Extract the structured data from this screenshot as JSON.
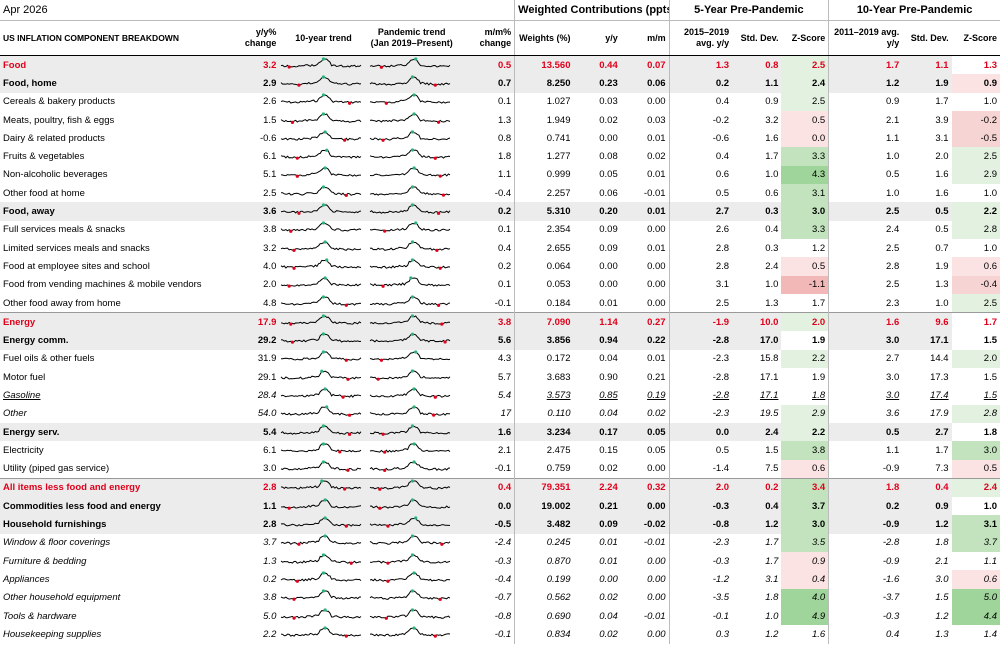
{
  "date": "Apr 2026",
  "groups": {
    "weighted": "Weighted Contributions (ppts)*",
    "five": "5-Year Pre-Pandemic",
    "ten": "10-Year Pre-Pandemic"
  },
  "headers": {
    "component": "US INFLATION COMPONENT BREAKDOWN",
    "yy": "y/y% change",
    "trend10": "10-year trend",
    "pandemic": "Pandemic trend (Jan 2019–Present)",
    "mm": "m/m% change",
    "weights": "Weights (%)",
    "wyy": "y/y",
    "wmm": "m/m",
    "avg5": "2015–2019 avg. y/y",
    "sd5": "Std. Dev.",
    "z5": "Z-Score",
    "avg10": "2011–2019 avg. y/y",
    "sd10": "Std. Dev.",
    "z10": "Z-Score"
  },
  "colors": {
    "red": "#e0001b",
    "greenDark": "#4cb050",
    "greenLight": "#d6ecd4",
    "redLight": "#f7d0d0",
    "redMid": "#f2b0b0",
    "grey": "#ececec"
  },
  "rows": [
    {
      "label": "Food",
      "style": "red",
      "yy": "3.2",
      "mm": "0.5",
      "w": "13.560",
      "wyy": "0.44",
      "wmm": "0.07",
      "a5": "1.3",
      "s5": "0.8",
      "z5": "2.5",
      "a10": "1.7",
      "s10": "1.1",
      "z10": "1.3"
    },
    {
      "label": "Food, home",
      "style": "bold",
      "yy": "2.9",
      "mm": "0.7",
      "w": "8.250",
      "wyy": "0.23",
      "wmm": "0.06",
      "a5": "0.2",
      "s5": "1.1",
      "z5": "2.4",
      "a10": "1.2",
      "s10": "1.9",
      "z10": "0.9"
    },
    {
      "label": "Cereals & bakery products",
      "style": "",
      "yy": "2.6",
      "mm": "0.1",
      "w": "1.027",
      "wyy": "0.03",
      "wmm": "0.00",
      "a5": "0.4",
      "s5": "0.9",
      "z5": "2.5",
      "a10": "0.9",
      "s10": "1.7",
      "z10": "1.0"
    },
    {
      "label": "Meats, poultry, fish & eggs",
      "style": "",
      "yy": "1.5",
      "mm": "1.3",
      "w": "1.949",
      "wyy": "0.02",
      "wmm": "0.03",
      "a5": "-0.2",
      "s5": "3.2",
      "z5": "0.5",
      "a10": "2.1",
      "s10": "3.9",
      "z10": "-0.2"
    },
    {
      "label": "Dairy & related products",
      "style": "",
      "yy": "-0.6",
      "mm": "0.8",
      "w": "0.741",
      "wyy": "0.00",
      "wmm": "0.01",
      "a5": "-0.6",
      "s5": "1.6",
      "z5": "0.0",
      "a10": "1.1",
      "s10": "3.1",
      "z10": "-0.5"
    },
    {
      "label": "Fruits & vegetables",
      "style": "",
      "yy": "6.1",
      "mm": "1.8",
      "w": "1.277",
      "wyy": "0.08",
      "wmm": "0.02",
      "a5": "0.4",
      "s5": "1.7",
      "z5": "3.3",
      "a10": "1.0",
      "s10": "2.0",
      "z10": "2.5"
    },
    {
      "label": "Non-alcoholic beverages",
      "style": "",
      "yy": "5.1",
      "mm": "1.1",
      "w": "0.999",
      "wyy": "0.05",
      "wmm": "0.01",
      "a5": "0.6",
      "s5": "1.0",
      "z5": "4.3",
      "a10": "0.5",
      "s10": "1.6",
      "z10": "2.9"
    },
    {
      "label": "Other food at home",
      "style": "",
      "yy": "2.5",
      "mm": "-0.4",
      "w": "2.257",
      "wyy": "0.06",
      "wmm": "-0.01",
      "a5": "0.5",
      "s5": "0.6",
      "z5": "3.1",
      "a10": "1.0",
      "s10": "1.6",
      "z10": "1.0"
    },
    {
      "label": "Food, away",
      "style": "bold",
      "yy": "3.6",
      "mm": "0.2",
      "w": "5.310",
      "wyy": "0.20",
      "wmm": "0.01",
      "a5": "2.7",
      "s5": "0.3",
      "z5": "3.0",
      "a10": "2.5",
      "s10": "0.5",
      "z10": "2.2"
    },
    {
      "label": "Full services meals & snacks",
      "style": "",
      "yy": "3.8",
      "mm": "0.1",
      "w": "2.354",
      "wyy": "0.09",
      "wmm": "0.00",
      "a5": "2.6",
      "s5": "0.4",
      "z5": "3.3",
      "a10": "2.4",
      "s10": "0.5",
      "z10": "2.8"
    },
    {
      "label": "Limited services meals and snacks",
      "style": "",
      "yy": "3.2",
      "mm": "0.4",
      "w": "2.655",
      "wyy": "0.09",
      "wmm": "0.01",
      "a5": "2.8",
      "s5": "0.3",
      "z5": "1.2",
      "a10": "2.5",
      "s10": "0.7",
      "z10": "1.0"
    },
    {
      "label": "Food at employee sites and school",
      "style": "",
      "yy": "4.0",
      "mm": "0.2",
      "w": "0.064",
      "wyy": "0.00",
      "wmm": "0.00",
      "a5": "2.8",
      "s5": "2.4",
      "z5": "0.5",
      "a10": "2.8",
      "s10": "1.9",
      "z10": "0.6"
    },
    {
      "label": "Food from vending machines & mobile vendors",
      "style": "",
      "yy": "2.0",
      "mm": "0.1",
      "w": "0.053",
      "wyy": "0.00",
      "wmm": "0.00",
      "a5": "3.1",
      "s5": "1.0",
      "z5": "-1.1",
      "a10": "2.5",
      "s10": "1.3",
      "z10": "-0.4"
    },
    {
      "label": "Other food away from home",
      "style": "",
      "yy": "4.8",
      "mm": "-0.1",
      "w": "0.184",
      "wyy": "0.01",
      "wmm": "0.00",
      "a5": "2.5",
      "s5": "1.3",
      "z5": "1.7",
      "a10": "2.3",
      "s10": "1.0",
      "z10": "2.5"
    },
    {
      "label": "Energy",
      "style": "red",
      "yy": "17.9",
      "mm": "3.8",
      "w": "7.090",
      "wyy": "1.14",
      "wmm": "0.27",
      "a5": "-1.9",
      "s5": "10.0",
      "z5": "2.0",
      "a10": "1.6",
      "s10": "9.6",
      "z10": "1.7"
    },
    {
      "label": "Energy comm.",
      "style": "bold",
      "yy": "29.2",
      "mm": "5.6",
      "w": "3.856",
      "wyy": "0.94",
      "wmm": "0.22",
      "a5": "-2.8",
      "s5": "17.0",
      "z5": "1.9",
      "a10": "3.0",
      "s10": "17.1",
      "z10": "1.5"
    },
    {
      "label": "Fuel oils & other fuels",
      "style": "",
      "yy": "31.9",
      "mm": "4.3",
      "w": "0.172",
      "wyy": "0.04",
      "wmm": "0.01",
      "a5": "-2.3",
      "s5": "15.8",
      "z5": "2.2",
      "a10": "2.7",
      "s10": "14.4",
      "z10": "2.0"
    },
    {
      "label": "Motor fuel",
      "style": "",
      "yy": "29.1",
      "mm": "5.7",
      "w": "3.683",
      "wyy": "0.90",
      "wmm": "0.21",
      "a5": "-2.8",
      "s5": "17.1",
      "z5": "1.9",
      "a10": "3.0",
      "s10": "17.3",
      "z10": "1.5"
    },
    {
      "label": "Gasoline",
      "style": "und",
      "yy": "28.4",
      "mm": "5.4",
      "w": "3.573",
      "wyy": "0.85",
      "wmm": "0.19",
      "a5": "-2.8",
      "s5": "17.1",
      "z5": "1.8",
      "a10": "3.0",
      "s10": "17.4",
      "z10": "1.5"
    },
    {
      "label": "Other",
      "style": "it",
      "yy": "54.0",
      "mm": "17",
      "w": "0.110",
      "wyy": "0.04",
      "wmm": "0.02",
      "a5": "-2.3",
      "s5": "19.5",
      "z5": "2.9",
      "a10": "3.6",
      "s10": "17.9",
      "z10": "2.8"
    },
    {
      "label": "Energy serv.",
      "style": "bold",
      "yy": "5.4",
      "mm": "1.6",
      "w": "3.234",
      "wyy": "0.17",
      "wmm": "0.05",
      "a5": "0.0",
      "s5": "2.4",
      "z5": "2.2",
      "a10": "0.5",
      "s10": "2.7",
      "z10": "1.8"
    },
    {
      "label": "Electricity",
      "style": "",
      "yy": "6.1",
      "mm": "2.1",
      "w": "2.475",
      "wyy": "0.15",
      "wmm": "0.05",
      "a5": "0.5",
      "s5": "1.5",
      "z5": "3.8",
      "a10": "1.1",
      "s10": "1.7",
      "z10": "3.0"
    },
    {
      "label": "Utility (piped gas service)",
      "style": "",
      "yy": "3.0",
      "mm": "-0.1",
      "w": "0.759",
      "wyy": "0.02",
      "wmm": "0.00",
      "a5": "-1.4",
      "s5": "7.5",
      "z5": "0.6",
      "a10": "-0.9",
      "s10": "7.3",
      "z10": "0.5"
    },
    {
      "label": "All items less food and energy",
      "style": "red",
      "yy": "2.8",
      "mm": "0.4",
      "w": "79.351",
      "wyy": "2.24",
      "wmm": "0.32",
      "a5": "2.0",
      "s5": "0.2",
      "z5": "3.4",
      "a10": "1.8",
      "s10": "0.4",
      "z10": "2.4"
    },
    {
      "label": "Commodities less food and energy",
      "style": "bold",
      "yy": "1.1",
      "mm": "0.0",
      "w": "19.002",
      "wyy": "0.21",
      "wmm": "0.00",
      "a5": "-0.3",
      "s5": "0.4",
      "z5": "3.7",
      "a10": "0.2",
      "s10": "0.9",
      "z10": "1.0"
    },
    {
      "label": "Household furnishings",
      "style": "bold",
      "yy": "2.8",
      "mm": "-0.5",
      "w": "3.482",
      "wyy": "0.09",
      "wmm": "-0.02",
      "a5": "-0.8",
      "s5": "1.2",
      "z5": "3.0",
      "a10": "-0.9",
      "s10": "1.2",
      "z10": "3.1"
    },
    {
      "label": "Window & floor coverings",
      "style": "it",
      "yy": "3.7",
      "mm": "-2.4",
      "w": "0.245",
      "wyy": "0.01",
      "wmm": "-0.01",
      "a5": "-2.3",
      "s5": "1.7",
      "z5": "3.5",
      "a10": "-2.8",
      "s10": "1.8",
      "z10": "3.7"
    },
    {
      "label": "Furniture & bedding",
      "style": "it",
      "yy": "1.3",
      "mm": "-0.3",
      "w": "0.870",
      "wyy": "0.01",
      "wmm": "0.00",
      "a5": "-0.3",
      "s5": "1.7",
      "z5": "0.9",
      "a10": "-0.9",
      "s10": "2.1",
      "z10": "1.1"
    },
    {
      "label": "Appliances",
      "style": "it",
      "yy": "0.2",
      "mm": "-0.4",
      "w": "0.199",
      "wyy": "0.00",
      "wmm": "0.00",
      "a5": "-1.2",
      "s5": "3.1",
      "z5": "0.4",
      "a10": "-1.6",
      "s10": "3.0",
      "z10": "0.6"
    },
    {
      "label": "Other household equipment",
      "style": "it",
      "yy": "3.8",
      "mm": "-0.7",
      "w": "0.562",
      "wyy": "0.02",
      "wmm": "0.00",
      "a5": "-3.5",
      "s5": "1.8",
      "z5": "4.0",
      "a10": "-3.7",
      "s10": "1.5",
      "z10": "5.0"
    },
    {
      "label": "Tools & hardware",
      "style": "it",
      "yy": "5.0",
      "mm": "-0.8",
      "w": "0.690",
      "wyy": "0.04",
      "wmm": "-0.01",
      "a5": "-0.1",
      "s5": "1.0",
      "z5": "4.9",
      "a10": "-0.3",
      "s10": "1.2",
      "z10": "4.4"
    },
    {
      "label": "Housekeeping supplies",
      "style": "it",
      "yy": "2.2",
      "mm": "-0.1",
      "w": "0.834",
      "wyy": "0.02",
      "wmm": "0.00",
      "a5": "0.3",
      "s5": "1.2",
      "z5": "1.6",
      "a10": "0.4",
      "s10": "1.3",
      "z10": "1.4"
    }
  ]
}
